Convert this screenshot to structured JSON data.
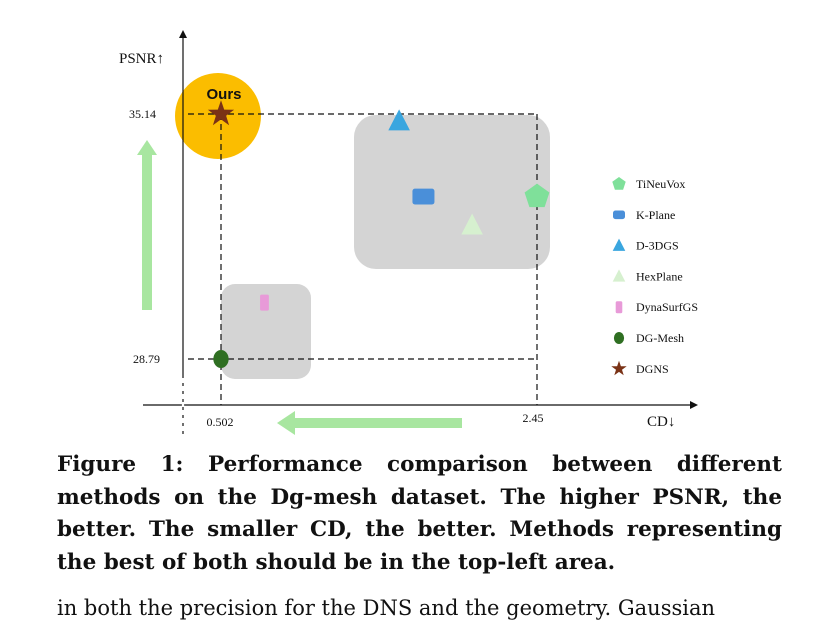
{
  "chart_data": {
    "type": "scatter",
    "xlabel": "CD↓",
    "ylabel": "PSNR↑",
    "x_ticks": [
      "0.502",
      "2.45"
    ],
    "y_ticks": [
      "35.14",
      "28.79"
    ],
    "highlight_label": "Ours",
    "series": [
      {
        "name": "TiNeuVox",
        "marker": "pentagon",
        "color": "#7fe09a",
        "x": 2.45,
        "y": 33.0
      },
      {
        "name": "K-Plane",
        "marker": "rounded-square",
        "color": "#4a8fd9",
        "x": 1.75,
        "y": 33.0
      },
      {
        "name": "D-3DGS",
        "marker": "triangle",
        "color": "#3aa6df",
        "x": 1.6,
        "y": 34.95
      },
      {
        "name": "HexPlane",
        "marker": "triangle",
        "color": "#d6f0cf",
        "x": 2.05,
        "y": 32.25
      },
      {
        "name": "DynaSurfGS",
        "marker": "rectangle",
        "color": "#e89ad8",
        "x": 0.77,
        "y": 30.25
      },
      {
        "name": "DG-Mesh",
        "marker": "circle",
        "color": "#2f6f22",
        "x": 0.502,
        "y": 28.79
      },
      {
        "name": "DGNS",
        "marker": "star",
        "color": "#7a3216",
        "x": 0.502,
        "y": 35.14
      }
    ],
    "legend_position": "right",
    "colors": {
      "highlight": "#fbbd00",
      "region": "#d4d4d4",
      "arrow": "#a8e6a0"
    }
  },
  "caption": "Figure 1: Performance comparison between different methods on the Dg-mesh dataset. The higher PSNR, the better. The smaller CD, the better. Methods representing the best of both should be in the top-left area.",
  "body_fragment": "in both the precision for the DNS and the geometry. Gaussian"
}
